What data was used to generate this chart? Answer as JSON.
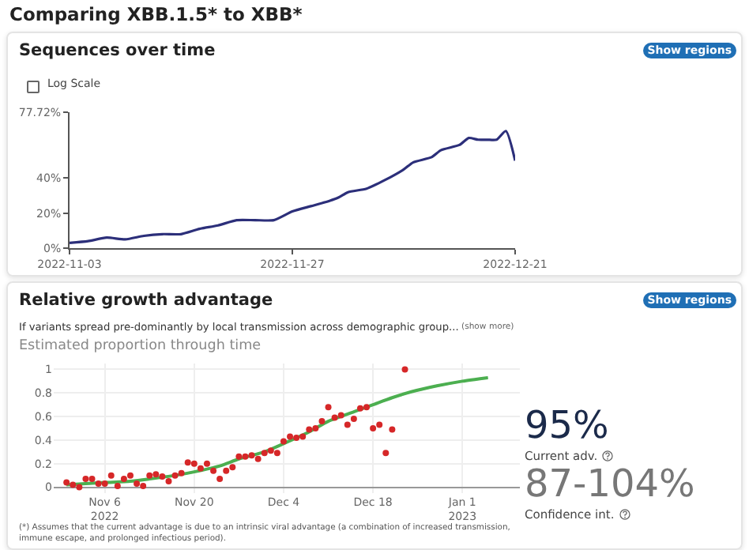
{
  "chart_data": [
    {
      "type": "line",
      "title": "Comparing XBB.1.5* to XBB*",
      "subtitle": "Sequences over time",
      "annotations": [
        "Show regions",
        "Log Scale"
      ],
      "x": [
        "2022-11-03",
        "2022-11-05",
        "2022-11-07",
        "2022-11-09",
        "2022-11-11",
        "2022-11-13",
        "2022-11-15",
        "2022-11-17",
        "2022-11-19",
        "2022-11-21",
        "2022-11-23",
        "2022-11-25",
        "2022-11-27",
        "2022-11-29",
        "2022-12-01",
        "2022-12-02",
        "2022-12-03",
        "2022-12-05",
        "2022-12-07",
        "2022-12-09",
        "2022-12-10",
        "2022-12-12",
        "2022-12-13",
        "2022-12-15",
        "2022-12-16",
        "2022-12-17",
        "2022-12-18",
        "2022-12-19",
        "2022-12-20",
        "2022-12-21"
      ],
      "series": [
        {
          "color": "#2c2f7a",
          "values": [
            3,
            4,
            6,
            5,
            7,
            8,
            8,
            11,
            13,
            16,
            16,
            16,
            21,
            24,
            27,
            29,
            32,
            34,
            39,
            45,
            49,
            52,
            56,
            59,
            63,
            62,
            62,
            62,
            67,
            50
          ]
        }
      ],
      "xlim": [
        "2022-11-03",
        "2022-12-21"
      ],
      "xticks": [
        {
          "value": "2022-11-03",
          "label": "2022-11-03"
        },
        {
          "value": "2022-11-27",
          "label": "2022-11-27"
        },
        {
          "value": "2022-12-21",
          "label": "2022-12-21"
        }
      ],
      "ylim": [
        0,
        77.72
      ],
      "yticks": [
        {
          "value": 0,
          "label": "0%"
        },
        {
          "value": 20,
          "label": "20%"
        },
        {
          "value": 40,
          "label": "40%"
        },
        {
          "value": 77.72,
          "label": "77.72%"
        }
      ]
    },
    {
      "type": "scatter",
      "title": "Relative growth advantage",
      "subtitle": "If variants spread pre-dominantly by local transmission across demographic group...",
      "annotations": [
        "(show more)",
        "Estimated proportion through time",
        "Show regions",
        "(*) Assumes that the current advantage is due to an intrinsic viral advantage (a combination of increased transmission, immune escape, and prolonged infectious period)."
      ],
      "series": [
        {
          "type": "scatter",
          "color": "#d62728",
          "marker": "circle",
          "x": [
            "2022-10-31",
            "2022-11-01",
            "2022-11-02",
            "2022-11-03",
            "2022-11-04",
            "2022-11-05",
            "2022-11-06",
            "2022-11-07",
            "2022-11-08",
            "2022-11-09",
            "2022-11-10",
            "2022-11-11",
            "2022-11-12",
            "2022-11-13",
            "2022-11-14",
            "2022-11-15",
            "2022-11-16",
            "2022-11-17",
            "2022-11-18",
            "2022-11-19",
            "2022-11-20",
            "2022-11-21",
            "2022-11-22",
            "2022-11-23",
            "2022-11-24",
            "2022-11-25",
            "2022-11-26",
            "2022-11-27",
            "2022-11-28",
            "2022-11-29",
            "2022-11-30",
            "2022-12-01",
            "2022-12-02",
            "2022-12-03",
            "2022-12-04",
            "2022-12-05",
            "2022-12-06",
            "2022-12-07",
            "2022-12-08",
            "2022-12-09",
            "2022-12-10",
            "2022-12-11",
            "2022-12-12",
            "2022-12-13",
            "2022-12-14",
            "2022-12-15",
            "2022-12-16",
            "2022-12-17",
            "2022-12-18",
            "2022-12-19",
            "2022-12-20",
            "2022-12-21",
            "2022-12-23"
          ],
          "values": [
            0.04,
            0.02,
            0.0,
            0.07,
            0.07,
            0.03,
            0.03,
            0.1,
            0.01,
            0.07,
            0.1,
            0.03,
            0.01,
            0.1,
            0.11,
            0.09,
            0.05,
            0.1,
            0.12,
            0.21,
            0.2,
            0.16,
            0.2,
            0.14,
            0.07,
            0.14,
            0.17,
            0.26,
            0.26,
            0.27,
            0.24,
            0.29,
            0.31,
            0.29,
            0.39,
            0.43,
            0.42,
            0.43,
            0.49,
            0.5,
            0.56,
            0.68,
            0.59,
            0.61,
            0.53,
            0.58,
            0.67,
            0.68,
            0.5,
            0.53,
            0.29,
            0.49,
            1.0
          ]
        },
        {
          "type": "line",
          "color": "#4caf50",
          "x": [
            "2022-10-31",
            "2022-11-03",
            "2022-11-06",
            "2022-11-10",
            "2022-11-13",
            "2022-11-17",
            "2022-11-20",
            "2022-11-24",
            "2022-11-27",
            "2022-12-01",
            "2022-12-04",
            "2022-12-08",
            "2022-12-11",
            "2022-12-15",
            "2022-12-18",
            "2022-12-21",
            "2022-12-24",
            "2022-12-28",
            "2023-01-01",
            "2023-01-05"
          ],
          "values": [
            0.02,
            0.03,
            0.04,
            0.05,
            0.07,
            0.1,
            0.13,
            0.18,
            0.24,
            0.3,
            0.37,
            0.47,
            0.56,
            0.64,
            0.7,
            0.76,
            0.81,
            0.86,
            0.9,
            0.93
          ],
          "lower": [
            0.01,
            0.02,
            0.03,
            0.04,
            0.06,
            0.09,
            0.12,
            0.17,
            0.23,
            0.29,
            0.36,
            0.46,
            0.55,
            0.63,
            0.69,
            0.75,
            0.8,
            0.85,
            0.89,
            0.92
          ],
          "upper": [
            0.03,
            0.04,
            0.05,
            0.06,
            0.08,
            0.11,
            0.14,
            0.19,
            0.25,
            0.31,
            0.38,
            0.48,
            0.57,
            0.65,
            0.71,
            0.77,
            0.82,
            0.87,
            0.91,
            0.94
          ]
        }
      ],
      "xlim": [
        "2022-10-29",
        "2023-01-10"
      ],
      "xticks": [
        {
          "value": "2022-11-06",
          "label": "Nov 6\n2022"
        },
        {
          "value": "2022-11-20",
          "label": "Nov 20"
        },
        {
          "value": "2022-12-04",
          "label": "Dec 4"
        },
        {
          "value": "2022-12-18",
          "label": "Dec 18"
        },
        {
          "value": "2023-01-01",
          "label": "Jan 1\n2023"
        }
      ],
      "ylim": [
        -0.05,
        1.05
      ],
      "yticks": [
        0,
        0.2,
        0.4,
        0.6,
        0.8,
        1
      ],
      "grid": true
    },
    {
      "type": "other",
      "annotations": [
        "95%",
        "Current adv.",
        "87-104%",
        "Confidence int."
      ]
    }
  ]
}
